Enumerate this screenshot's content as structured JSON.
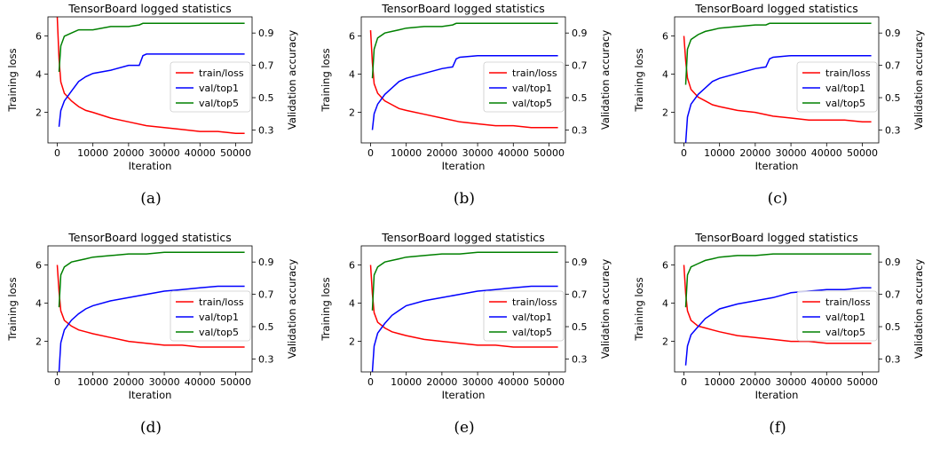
{
  "figure": {
    "panels": [
      {
        "caption": "(a)"
      },
      {
        "caption": "(b)"
      },
      {
        "caption": "(c)"
      },
      {
        "caption": "(d)"
      },
      {
        "caption": "(e)"
      },
      {
        "caption": "(f)"
      }
    ]
  },
  "chart_data": [
    {
      "type": "line",
      "title": "TensorBoard logged statistics",
      "xlabel": "Iteration",
      "ylabel": "Training loss",
      "y2label": "Validation accuracy",
      "xticks": [
        0,
        10000,
        20000,
        30000,
        40000,
        50000
      ],
      "xlim": [
        -2600,
        54600
      ],
      "yticks": [
        2,
        4,
        6
      ],
      "ylim": [
        0.4,
        7.0
      ],
      "y2ticks": [
        0.3,
        0.5,
        0.7,
        0.9
      ],
      "y2lim": [
        0.22,
        1.0
      ],
      "legend_position": "center-right",
      "colors": {
        "train/loss": "#ff0000",
        "val/top1": "#0000ff",
        "val/top5": "#008000"
      },
      "series": [
        {
          "name": "train/loss",
          "axis": "left",
          "x": [
            0,
            500,
            1000,
            2000,
            4000,
            6000,
            8000,
            10000,
            15000,
            20000,
            25000,
            30000,
            35000,
            40000,
            45000,
            50000,
            52500
          ],
          "values": [
            7.0,
            4.8,
            3.6,
            3.0,
            2.6,
            2.3,
            2.1,
            2.0,
            1.7,
            1.5,
            1.3,
            1.2,
            1.1,
            1.0,
            1.0,
            0.9,
            0.9
          ]
        },
        {
          "name": "val/top1",
          "axis": "right",
          "x": [
            500,
            1000,
            2000,
            4000,
            6000,
            8000,
            10000,
            15000,
            20000,
            23000,
            24000,
            25000,
            30000,
            40000,
            50000,
            52500
          ],
          "values": [
            0.32,
            0.42,
            0.48,
            0.54,
            0.6,
            0.63,
            0.65,
            0.67,
            0.7,
            0.7,
            0.76,
            0.77,
            0.77,
            0.77,
            0.77,
            0.77
          ]
        },
        {
          "name": "val/top5",
          "axis": "right",
          "x": [
            500,
            1000,
            2000,
            4000,
            6000,
            8000,
            10000,
            15000,
            20000,
            23000,
            24000,
            25000,
            30000,
            40000,
            50000,
            52500
          ],
          "values": [
            0.66,
            0.82,
            0.88,
            0.9,
            0.92,
            0.92,
            0.92,
            0.94,
            0.94,
            0.95,
            0.96,
            0.96,
            0.96,
            0.96,
            0.96,
            0.96
          ]
        }
      ]
    },
    {
      "type": "line",
      "title": "TensorBoard logged statistics",
      "xlabel": "Iteration",
      "ylabel": "Training loss",
      "y2label": "Validation accuracy",
      "xticks": [
        0,
        10000,
        20000,
        30000,
        40000,
        50000
      ],
      "xlim": [
        -2600,
        54600
      ],
      "yticks": [
        2,
        4,
        6
      ],
      "ylim": [
        0.4,
        7.0
      ],
      "y2ticks": [
        0.3,
        0.5,
        0.7,
        0.9
      ],
      "y2lim": [
        0.22,
        1.0
      ],
      "legend_position": "center-right",
      "colors": {
        "train/loss": "#ff0000",
        "val/top1": "#0000ff",
        "val/top5": "#008000"
      },
      "series": [
        {
          "name": "train/loss",
          "axis": "left",
          "x": [
            0,
            500,
            1000,
            2000,
            4000,
            6000,
            8000,
            10000,
            15000,
            20000,
            25000,
            30000,
            35000,
            40000,
            45000,
            50000,
            52500
          ],
          "values": [
            6.3,
            4.6,
            3.5,
            3.0,
            2.6,
            2.4,
            2.2,
            2.1,
            1.9,
            1.7,
            1.5,
            1.4,
            1.3,
            1.3,
            1.2,
            1.2,
            1.2
          ]
        },
        {
          "name": "val/top1",
          "axis": "right",
          "x": [
            500,
            1000,
            2000,
            4000,
            6000,
            8000,
            10000,
            15000,
            20000,
            23000,
            24000,
            25000,
            30000,
            40000,
            50000,
            52500
          ],
          "values": [
            0.3,
            0.4,
            0.46,
            0.52,
            0.56,
            0.6,
            0.62,
            0.65,
            0.68,
            0.69,
            0.74,
            0.75,
            0.76,
            0.76,
            0.76,
            0.76
          ]
        },
        {
          "name": "val/top5",
          "axis": "right",
          "x": [
            500,
            1000,
            2000,
            4000,
            6000,
            8000,
            10000,
            15000,
            20000,
            23000,
            24000,
            25000,
            30000,
            40000,
            50000,
            52500
          ],
          "values": [
            0.62,
            0.8,
            0.87,
            0.9,
            0.91,
            0.92,
            0.93,
            0.94,
            0.94,
            0.95,
            0.96,
            0.96,
            0.96,
            0.96,
            0.96,
            0.96
          ]
        }
      ]
    },
    {
      "type": "line",
      "title": "TensorBoard logged statistics",
      "xlabel": "Iteration",
      "ylabel": "Training loss",
      "y2label": "Validation accuracy",
      "xticks": [
        0,
        10000,
        20000,
        30000,
        40000,
        50000
      ],
      "xlim": [
        -2600,
        54600
      ],
      "yticks": [
        2,
        4,
        6
      ],
      "ylim": [
        0.4,
        7.0
      ],
      "y2ticks": [
        0.3,
        0.5,
        0.7,
        0.9
      ],
      "y2lim": [
        0.22,
        1.0
      ],
      "legend_position": "center-right",
      "colors": {
        "train/loss": "#ff0000",
        "val/top1": "#0000ff",
        "val/top5": "#008000"
      },
      "series": [
        {
          "name": "train/loss",
          "axis": "left",
          "x": [
            0,
            500,
            1000,
            2000,
            4000,
            6000,
            8000,
            10000,
            15000,
            20000,
            25000,
            30000,
            35000,
            40000,
            45000,
            50000,
            52500
          ],
          "values": [
            6.0,
            4.7,
            3.8,
            3.2,
            2.8,
            2.6,
            2.4,
            2.3,
            2.1,
            2.0,
            1.8,
            1.7,
            1.6,
            1.6,
            1.6,
            1.5,
            1.5
          ]
        },
        {
          "name": "val/top1",
          "axis": "right",
          "x": [
            500,
            1000,
            2000,
            4000,
            6000,
            8000,
            10000,
            15000,
            20000,
            23000,
            24000,
            25000,
            30000,
            40000,
            50000,
            52500
          ],
          "values": [
            0.22,
            0.38,
            0.46,
            0.52,
            0.56,
            0.6,
            0.62,
            0.65,
            0.68,
            0.69,
            0.74,
            0.75,
            0.76,
            0.76,
            0.76,
            0.76
          ]
        },
        {
          "name": "val/top5",
          "axis": "right",
          "x": [
            500,
            1000,
            2000,
            4000,
            6000,
            8000,
            10000,
            15000,
            20000,
            23000,
            24000,
            25000,
            30000,
            40000,
            50000,
            52500
          ],
          "values": [
            0.58,
            0.8,
            0.86,
            0.89,
            0.91,
            0.92,
            0.93,
            0.94,
            0.95,
            0.95,
            0.96,
            0.96,
            0.96,
            0.96,
            0.96,
            0.96
          ]
        }
      ]
    },
    {
      "type": "line",
      "title": "TensorBoard logged statistics",
      "xlabel": "Iteration",
      "ylabel": "Training loss",
      "y2label": "Validation accuracy",
      "xticks": [
        0,
        10000,
        20000,
        30000,
        40000,
        50000
      ],
      "xlim": [
        -2600,
        54600
      ],
      "yticks": [
        2,
        4,
        6
      ],
      "ylim": [
        0.4,
        7.0
      ],
      "y2ticks": [
        0.3,
        0.5,
        0.7,
        0.9
      ],
      "y2lim": [
        0.22,
        1.0
      ],
      "legend_position": "center-right",
      "colors": {
        "train/loss": "#ff0000",
        "val/top1": "#0000ff",
        "val/top5": "#008000"
      },
      "series": [
        {
          "name": "train/loss",
          "axis": "left",
          "x": [
            0,
            500,
            1000,
            2000,
            4000,
            6000,
            8000,
            10000,
            15000,
            20000,
            25000,
            30000,
            35000,
            40000,
            45000,
            50000,
            52500
          ],
          "values": [
            6.0,
            4.6,
            3.6,
            3.1,
            2.8,
            2.6,
            2.5,
            2.4,
            2.2,
            2.0,
            1.9,
            1.8,
            1.8,
            1.7,
            1.7,
            1.7,
            1.7
          ]
        },
        {
          "name": "val/top1",
          "axis": "right",
          "x": [
            500,
            1000,
            2000,
            4000,
            6000,
            8000,
            10000,
            15000,
            20000,
            25000,
            30000,
            35000,
            40000,
            45000,
            50000,
            52500
          ],
          "values": [
            0.22,
            0.4,
            0.48,
            0.54,
            0.58,
            0.61,
            0.63,
            0.66,
            0.68,
            0.7,
            0.72,
            0.73,
            0.74,
            0.75,
            0.75,
            0.75
          ]
        },
        {
          "name": "val/top5",
          "axis": "right",
          "x": [
            500,
            1000,
            2000,
            4000,
            6000,
            8000,
            10000,
            15000,
            20000,
            25000,
            30000,
            35000,
            40000,
            45000,
            50000,
            52500
          ],
          "values": [
            0.62,
            0.82,
            0.87,
            0.9,
            0.91,
            0.92,
            0.93,
            0.94,
            0.95,
            0.95,
            0.96,
            0.96,
            0.96,
            0.96,
            0.96,
            0.96
          ]
        }
      ]
    },
    {
      "type": "line",
      "title": "TensorBoard logged statistics",
      "xlabel": "Iteration",
      "ylabel": "Training loss",
      "y2label": "Validation accuracy",
      "xticks": [
        0,
        10000,
        20000,
        30000,
        40000,
        50000
      ],
      "xlim": [
        -2600,
        54600
      ],
      "yticks": [
        2,
        4,
        6
      ],
      "ylim": [
        0.4,
        7.0
      ],
      "y2ticks": [
        0.3,
        0.5,
        0.7,
        0.9
      ],
      "y2lim": [
        0.22,
        1.0
      ],
      "legend_position": "center-right",
      "colors": {
        "train/loss": "#ff0000",
        "val/top1": "#0000ff",
        "val/top5": "#008000"
      },
      "series": [
        {
          "name": "train/loss",
          "axis": "left",
          "x": [
            0,
            500,
            1000,
            2000,
            4000,
            6000,
            8000,
            10000,
            15000,
            20000,
            25000,
            30000,
            35000,
            40000,
            45000,
            50000,
            52500
          ],
          "values": [
            6.0,
            4.5,
            3.5,
            3.0,
            2.7,
            2.5,
            2.4,
            2.3,
            2.1,
            2.0,
            1.9,
            1.8,
            1.8,
            1.7,
            1.7,
            1.7,
            1.7
          ]
        },
        {
          "name": "val/top1",
          "axis": "right",
          "x": [
            500,
            1000,
            2000,
            4000,
            6000,
            8000,
            10000,
            15000,
            20000,
            25000,
            30000,
            35000,
            40000,
            45000,
            50000,
            52500
          ],
          "values": [
            0.22,
            0.38,
            0.46,
            0.52,
            0.57,
            0.6,
            0.63,
            0.66,
            0.68,
            0.7,
            0.72,
            0.73,
            0.74,
            0.75,
            0.75,
            0.75
          ]
        },
        {
          "name": "val/top5",
          "axis": "right",
          "x": [
            500,
            1000,
            2000,
            4000,
            6000,
            8000,
            10000,
            15000,
            20000,
            25000,
            30000,
            35000,
            40000,
            45000,
            50000,
            52500
          ],
          "values": [
            0.6,
            0.82,
            0.87,
            0.9,
            0.91,
            0.92,
            0.93,
            0.94,
            0.95,
            0.95,
            0.96,
            0.96,
            0.96,
            0.96,
            0.96,
            0.96
          ]
        }
      ]
    },
    {
      "type": "line",
      "title": "TensorBoard logged statistics",
      "xlabel": "Iteration",
      "ylabel": "Training loss",
      "y2label": "Validation accuracy",
      "xticks": [
        0,
        10000,
        20000,
        30000,
        40000,
        50000
      ],
      "xlim": [
        -2600,
        54600
      ],
      "yticks": [
        2,
        4,
        6
      ],
      "ylim": [
        0.4,
        7.0
      ],
      "y2ticks": [
        0.3,
        0.5,
        0.7,
        0.9
      ],
      "y2lim": [
        0.22,
        1.0
      ],
      "legend_position": "center-right",
      "colors": {
        "train/loss": "#ff0000",
        "val/top1": "#0000ff",
        "val/top5": "#008000"
      },
      "series": [
        {
          "name": "train/loss",
          "axis": "left",
          "x": [
            0,
            500,
            1000,
            2000,
            4000,
            6000,
            8000,
            10000,
            15000,
            20000,
            25000,
            30000,
            35000,
            40000,
            45000,
            50000,
            52500
          ],
          "values": [
            6.0,
            4.5,
            3.6,
            3.1,
            2.8,
            2.7,
            2.6,
            2.5,
            2.3,
            2.2,
            2.1,
            2.0,
            2.0,
            1.9,
            1.9,
            1.9,
            1.9
          ]
        },
        {
          "name": "val/top1",
          "axis": "right",
          "x": [
            500,
            1000,
            2000,
            4000,
            6000,
            8000,
            10000,
            15000,
            20000,
            25000,
            30000,
            35000,
            40000,
            45000,
            50000,
            52500
          ],
          "values": [
            0.26,
            0.38,
            0.45,
            0.5,
            0.55,
            0.58,
            0.61,
            0.64,
            0.66,
            0.68,
            0.71,
            0.72,
            0.73,
            0.73,
            0.74,
            0.74
          ]
        },
        {
          "name": "val/top5",
          "axis": "right",
          "x": [
            500,
            1000,
            2000,
            4000,
            6000,
            8000,
            10000,
            15000,
            20000,
            25000,
            30000,
            35000,
            40000,
            45000,
            50000,
            52500
          ],
          "values": [
            0.62,
            0.82,
            0.87,
            0.89,
            0.91,
            0.92,
            0.93,
            0.94,
            0.94,
            0.95,
            0.95,
            0.95,
            0.95,
            0.95,
            0.95,
            0.95
          ]
        }
      ]
    }
  ]
}
